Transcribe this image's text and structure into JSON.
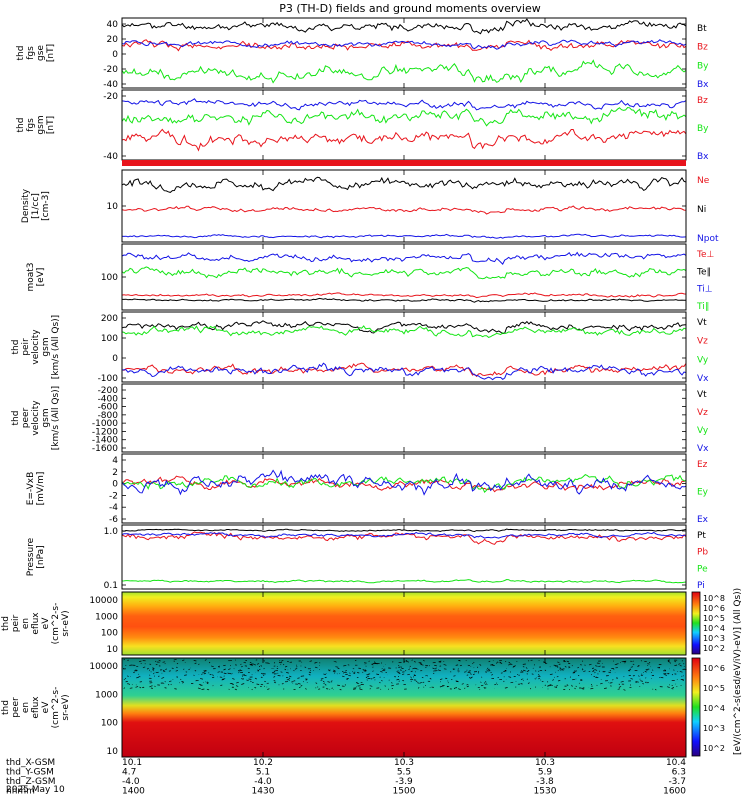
{
  "title": "P3 (TH-D) fields and ground moments overview",
  "colors": {
    "black": "#000000",
    "red": "#e8141c",
    "green": "#15e515",
    "blue": "#1414e6"
  },
  "time_ticks": [
    "1400",
    "1430",
    "1500",
    "1530",
    "1600"
  ],
  "footer": {
    "rows": [
      {
        "label": "thd_X-GSM",
        "values": [
          "10.1",
          "10.2",
          "10.3",
          "10.3",
          "10.4"
        ]
      },
      {
        "label": "thd_Y-GSM",
        "values": [
          "4.7",
          "5.1",
          "5.5",
          "5.9",
          "6.3"
        ]
      },
      {
        "label": "thd_Z-GSM",
        "values": [
          "-4.0",
          "-4.0",
          "-3.9",
          "-3.8",
          "-3.7"
        ]
      },
      {
        "label": "hhmm",
        "values": [
          "1400",
          "1430",
          "1500",
          "1530",
          "1600"
        ]
      }
    ],
    "date": "2025 May 10"
  },
  "colorbar": {
    "label": "[eV/(cm^2-s(esd/eV/iV)-eV)] (All Qs))",
    "upper_ticks": [
      "10^8",
      "10^6",
      "10^5",
      "10^4",
      "10^3",
      "10^2"
    ],
    "lower_ticks": [
      "10^6",
      "10^5",
      "10^4",
      "10^3",
      "10^2"
    ]
  },
  "chart_data": [
    {
      "type": "line",
      "id": "fgs_gse",
      "ylabel_lines": [
        "thd",
        "fgs",
        "gse",
        "[nT]"
      ],
      "yticks": [
        "40",
        "20",
        "0",
        "-20",
        "-40"
      ],
      "ylim": [
        -45,
        45
      ],
      "series": [
        {
          "name": "Bt",
          "color": "black",
          "base": 35,
          "amp": 6,
          "seed": 11
        },
        {
          "name": "Bz",
          "color": "red",
          "base": 10,
          "amp": 6,
          "seed": 12
        },
        {
          "name": "By",
          "color": "green",
          "base": -25,
          "amp": 9,
          "seed": 13
        },
        {
          "name": "Bx",
          "color": "blue",
          "base": 12,
          "amp": 4,
          "seed": 14
        }
      ]
    },
    {
      "type": "line",
      "id": "fgs_gsm",
      "ylabel_lines": [
        "thd",
        "fgs",
        "gsm",
        "[nT]"
      ],
      "yticks": [
        "-20",
        "-40"
      ],
      "ylim": [
        -60,
        8
      ],
      "series": [
        {
          "name": "Bz",
          "color": "red",
          "base": -38,
          "amp": 7,
          "seed": 21
        },
        {
          "name": "By",
          "color": "green",
          "base": -18,
          "amp": 7,
          "seed": 22
        },
        {
          "name": "Bx",
          "color": "blue",
          "base": -5,
          "amp": 4,
          "seed": 23
        }
      ]
    },
    {
      "type": "bar-strip",
      "id": "mode_bar"
    },
    {
      "type": "line",
      "id": "density",
      "ylabel_lines": [
        "Density",
        "[1/cc]",
        "[cm-3]"
      ],
      "yticks": [
        "10"
      ],
      "ylim": [
        0,
        10
      ],
      "series": [
        {
          "name": "Ne",
          "color": "red",
          "base": 4.5,
          "amp": 0.35,
          "seed": 31
        },
        {
          "name": "Ni",
          "color": "black",
          "base": 8.2,
          "amp": 0.8,
          "seed": 32
        },
        {
          "name": "Npot",
          "color": "blue",
          "base": 0.8,
          "amp": 0.2,
          "seed": 33
        }
      ]
    },
    {
      "type": "line",
      "id": "temperature",
      "ylabel_lines": [
        "moat3",
        "[eV]"
      ],
      "yticks": [
        "100"
      ],
      "ylim": [
        0,
        10
      ],
      "series": [
        {
          "name": "Te⊥",
          "color": "red",
          "base": 2.2,
          "amp": 0.25,
          "seed": 41
        },
        {
          "name": "Te∥",
          "color": "black",
          "base": 1.5,
          "amp": 0.2,
          "seed": 42
        },
        {
          "name": "Ti⊥",
          "color": "blue",
          "base": 8.0,
          "amp": 0.6,
          "seed": 43
        },
        {
          "name": "Ti∥",
          "color": "green",
          "base": 5.8,
          "amp": 0.7,
          "seed": 44
        }
      ]
    },
    {
      "type": "line",
      "id": "peir_velocity",
      "ylabel_lines": [
        "thd",
        "peir",
        "velocity",
        "gsm",
        "[km/s (All Qs)]"
      ],
      "yticks": [
        "200",
        "100",
        "0",
        "-100"
      ],
      "ylim": [
        -120,
        220
      ],
      "series": [
        {
          "name": "Vt",
          "color": "black",
          "base": 150,
          "amp": 20,
          "seed": 51
        },
        {
          "name": "Vz",
          "color": "red",
          "base": -60,
          "amp": 22,
          "seed": 52
        },
        {
          "name": "Vy",
          "color": "green",
          "base": 130,
          "amp": 22,
          "seed": 53
        },
        {
          "name": "Vx",
          "color": "blue",
          "base": -70,
          "amp": 25,
          "seed": 54
        }
      ]
    },
    {
      "type": "line",
      "id": "peer_velocity",
      "ylabel_lines": [
        "thd",
        "peer",
        "velocity",
        "gsm",
        "[km/s (All Qs)]"
      ],
      "yticks": [
        "-200",
        "-400",
        "-600",
        "-800",
        "-1000",
        "-1200",
        "-1400",
        "-1600"
      ],
      "ylim": [
        -1700,
        -100
      ],
      "series": [
        {
          "name": "Vt",
          "color": "black"
        },
        {
          "name": "Vz",
          "color": "red"
        },
        {
          "name": "Vy",
          "color": "green"
        },
        {
          "name": "Vx",
          "color": "blue"
        }
      ]
    },
    {
      "type": "line",
      "id": "efield",
      "ylabel_lines": [
        "E=-VxB",
        "[mV/m]"
      ],
      "yticks": [
        "4",
        "2",
        "0",
        "-2",
        "-4",
        "-6"
      ],
      "ylim": [
        -6.5,
        5
      ],
      "series": [
        {
          "name": "Ez",
          "color": "red",
          "base": 0,
          "amp": 0.8,
          "seed": 61
        },
        {
          "name": "Ey",
          "color": "green",
          "base": 0.2,
          "amp": 0.9,
          "seed": 62
        },
        {
          "name": "Ex",
          "color": "blue",
          "base": 0.3,
          "amp": 1.3,
          "seed": 63
        }
      ]
    },
    {
      "type": "line",
      "id": "pressure",
      "ylabel_lines": [
        "Pressure",
        "[nPa]"
      ],
      "yticks": [
        "1.0",
        "0.1"
      ],
      "ylim": [
        0,
        10
      ],
      "series": [
        {
          "name": "Pt",
          "color": "black",
          "base": 9.2,
          "amp": 0.15,
          "seed": 71
        },
        {
          "name": "Pb",
          "color": "red",
          "base": 8.1,
          "amp": 0.6,
          "seed": 72
        },
        {
          "name": "Pe",
          "color": "green",
          "base": 1.2,
          "amp": 0.2,
          "seed": 73
        },
        {
          "name": "Pi",
          "color": "blue",
          "base": 8.5,
          "amp": 0.3,
          "seed": 74
        }
      ]
    },
    {
      "type": "heatmap",
      "id": "peir_spec",
      "ylabel_lines": [
        "thd",
        "peir",
        "en",
        "eflux",
        "eV",
        "(cm^2-s-",
        "sr-eV)"
      ],
      "yticks": [
        "10000",
        "1000",
        "100",
        "10"
      ]
    },
    {
      "type": "heatmap",
      "id": "peer_spec",
      "ylabel_lines": [
        "thd",
        "peer",
        "en",
        "eflux",
        "eV",
        "(cm^2-s-",
        "sr-eV)"
      ],
      "yticks": [
        "10000",
        "1000",
        "100",
        "10"
      ]
    }
  ]
}
